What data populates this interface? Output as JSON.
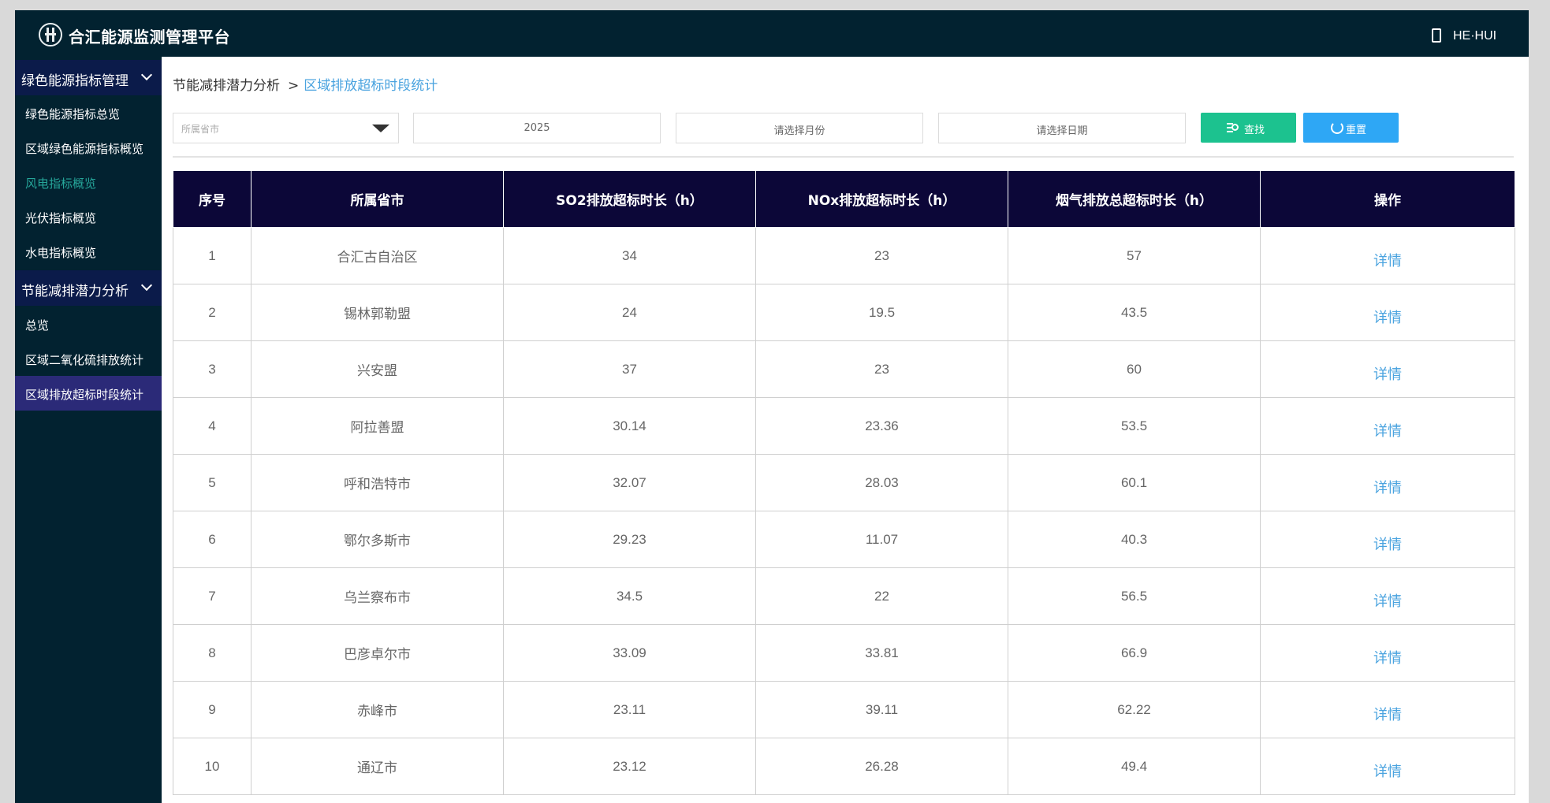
{
  "header": {
    "title": "合汇能源监测管理平台",
    "user": "HE·HUI"
  },
  "sidebar": {
    "groups": [
      {
        "label": "绿色能源指标管理",
        "items": [
          "绿色能源指标总览",
          "区域绿色能源指标概览",
          "风电指标概览",
          "光伏指标概览",
          "水电指标概览"
        ]
      },
      {
        "label": "节能减排潜力分析",
        "items": [
          "总览",
          "区域二氧化硫排放统计",
          "区域排放超标时段统计"
        ]
      }
    ]
  },
  "breadcrumb": {
    "parent": "节能减排潜力分析",
    "separator": ">",
    "current": "区域排放超标时段统计"
  },
  "filters": {
    "province_placeholder": "所属省市",
    "year": "2025",
    "month_placeholder": "请选择月份",
    "date_placeholder": "请选择日期",
    "search_label": "查找",
    "reset_label": "重置"
  },
  "table": {
    "columns": [
      "序号",
      "所属省市",
      "SO2排放超标时长（h）",
      "NOx排放超标时长（h）",
      "烟气排放总超标时长（h）",
      "操作"
    ],
    "rows": [
      [
        "1",
        "合汇古自治区",
        "34",
        "23",
        "57",
        "详情"
      ],
      [
        "2",
        "锡林郭勒盟",
        "24",
        "19.5",
        "43.5",
        "详情"
      ],
      [
        "3",
        "兴安盟",
        "37",
        "23",
        "60",
        "详情"
      ],
      [
        "4",
        "阿拉善盟",
        "30.14",
        "23.36",
        "53.5",
        "详情"
      ],
      [
        "5",
        "呼和浩特市",
        "32.07",
        "28.03",
        "60.1",
        "详情"
      ],
      [
        "6",
        "鄂尔多斯市",
        "29.23",
        "11.07",
        "40.3",
        "详情"
      ],
      [
        "7",
        "乌兰察布市",
        "34.5",
        "22",
        "56.5",
        "详情"
      ],
      [
        "8",
        "巴彦卓尔市",
        "33.09",
        "33.81",
        "66.9",
        "详情"
      ],
      [
        "9",
        "赤峰市",
        "23.11",
        "39.11",
        "62.22",
        "详情"
      ],
      [
        "10",
        "通辽市",
        "23.12",
        "26.28",
        "49.4",
        "详情"
      ]
    ]
  },
  "colors": {
    "topbar": "#022230",
    "sidebar_group": "#0b1b4a",
    "sidebar_active": "#2b2a78",
    "table_header": "#0c0738",
    "search_button": "#1cc28f",
    "reset_button": "#2ea7f5",
    "link": "#4aa3df",
    "nox_green": "#1a7d1a"
  }
}
